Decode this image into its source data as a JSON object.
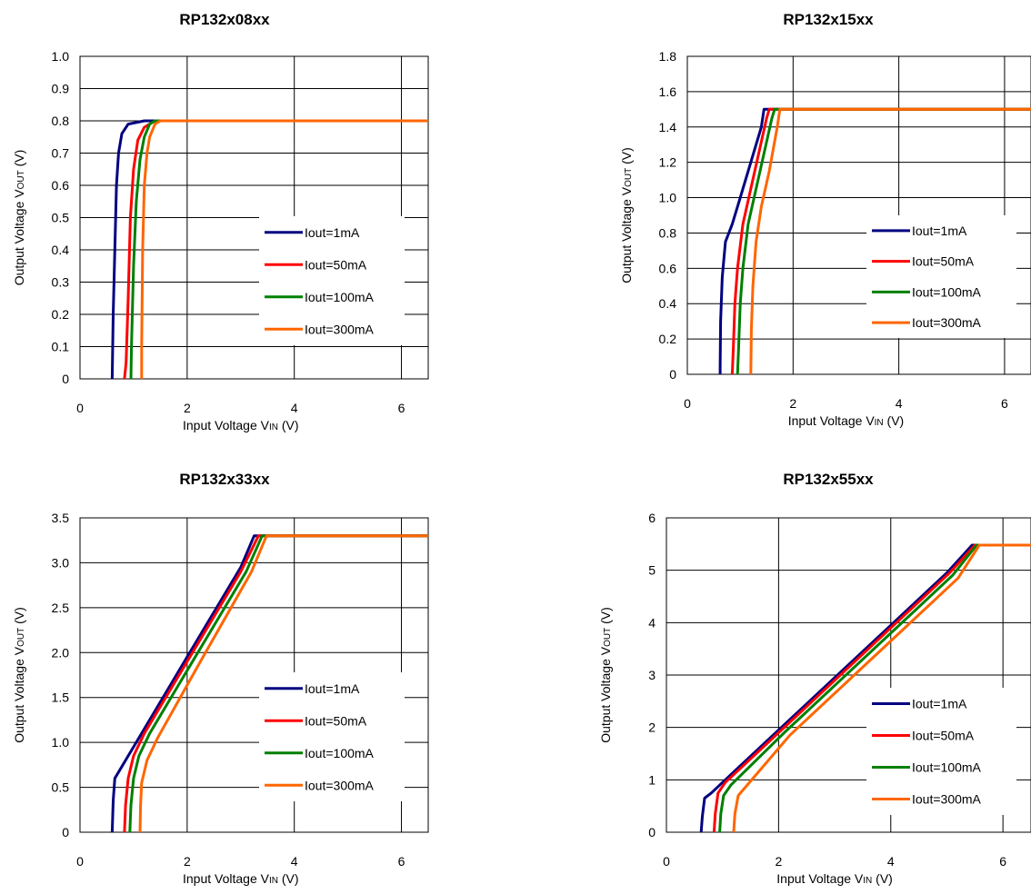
{
  "legend_labels": [
    "Iout=1mA",
    "Iout=50mA",
    "Iout=100mA",
    "Iout=300mA"
  ],
  "series_colors": [
    "#000080",
    "#ff0000",
    "#008000",
    "#ff6600"
  ],
  "x_axis": {
    "label_prefix": "Input Voltage V",
    "label_sub": "IN",
    "label_suffix": " (V)",
    "ticks": [
      "0",
      "2",
      "4",
      "6"
    ],
    "range": [
      0,
      6.5
    ]
  },
  "y_axis_label": {
    "prefix": "Output Voltage V",
    "sub": "OUT",
    "suffix": " (V)"
  },
  "chart_data": [
    {
      "type": "line",
      "title": "RP132x08xx",
      "xlim": [
        0,
        6.5
      ],
      "ylim": [
        0,
        1.0
      ],
      "yticks": [
        "0",
        "0.1",
        "0.2",
        "0.3",
        "0.4",
        "0.5",
        "0.6",
        "0.7",
        "0.8",
        "0.9",
        "1.0"
      ],
      "grid": true,
      "legend_position": "right-middle",
      "series": [
        {
          "name": "Iout=1mA",
          "x": [
            0.6,
            0.62,
            0.65,
            0.68,
            0.72,
            0.78,
            0.9,
            1.2,
            6.5
          ],
          "y": [
            0,
            0.2,
            0.4,
            0.6,
            0.7,
            0.76,
            0.79,
            0.8,
            0.8
          ]
        },
        {
          "name": "Iout=50mA",
          "x": [
            0.83,
            0.86,
            0.9,
            0.94,
            1.0,
            1.08,
            1.2,
            1.4,
            6.5
          ],
          "y": [
            0,
            0.05,
            0.25,
            0.5,
            0.65,
            0.74,
            0.78,
            0.8,
            0.8
          ]
        },
        {
          "name": "Iout=100mA",
          "x": [
            0.95,
            0.96,
            1.0,
            1.05,
            1.12,
            1.2,
            1.3,
            1.4,
            6.5
          ],
          "y": [
            0,
            0.1,
            0.35,
            0.55,
            0.68,
            0.75,
            0.79,
            0.8,
            0.8
          ]
        },
        {
          "name": "Iout=300mA",
          "x": [
            1.15,
            1.15,
            1.17,
            1.2,
            1.25,
            1.3,
            1.4,
            1.5,
            6.5
          ],
          "y": [
            0,
            0.1,
            0.4,
            0.6,
            0.7,
            0.75,
            0.79,
            0.8,
            0.8
          ]
        }
      ]
    },
    {
      "type": "line",
      "title": "RP132x15xx",
      "xlim": [
        0,
        6.5
      ],
      "ylim": [
        0,
        1.8
      ],
      "yticks": [
        "0",
        "0.2",
        "0.4",
        "0.6",
        "0.8",
        "1.0",
        "1.2",
        "1.4",
        "1.6",
        "1.8"
      ],
      "grid": true,
      "legend_position": "right-middle",
      "series": [
        {
          "name": "Iout=1mA",
          "x": [
            0.62,
            0.62,
            0.63,
            0.66,
            0.72,
            0.85,
            1.0,
            1.2,
            1.4,
            1.45,
            6.5
          ],
          "y": [
            0,
            0.05,
            0.3,
            0.55,
            0.75,
            0.85,
            1.0,
            1.2,
            1.4,
            1.5,
            1.5
          ]
        },
        {
          "name": "Iout=50mA",
          "x": [
            0.85,
            0.87,
            0.9,
            0.95,
            1.05,
            1.2,
            1.35,
            1.5,
            1.55,
            6.5
          ],
          "y": [
            0,
            0.15,
            0.4,
            0.6,
            0.85,
            1.05,
            1.25,
            1.45,
            1.5,
            1.5
          ]
        },
        {
          "name": "Iout=100mA",
          "x": [
            0.95,
            0.97,
            1.0,
            1.05,
            1.15,
            1.3,
            1.45,
            1.6,
            1.65,
            6.5
          ],
          "y": [
            0,
            0.15,
            0.4,
            0.6,
            0.85,
            1.05,
            1.25,
            1.45,
            1.5,
            1.5
          ]
        },
        {
          "name": "Iout=300mA",
          "x": [
            1.2,
            1.21,
            1.24,
            1.3,
            1.4,
            1.55,
            1.7,
            1.75,
            6.5
          ],
          "y": [
            0,
            0.25,
            0.5,
            0.75,
            0.95,
            1.15,
            1.4,
            1.5,
            1.5
          ]
        }
      ]
    },
    {
      "type": "line",
      "title": "RP132x33xx",
      "xlim": [
        0,
        6.5
      ],
      "ylim": [
        0,
        3.5
      ],
      "yticks": [
        "0",
        "0.5",
        "1.0",
        "1.5",
        "2.0",
        "2.5",
        "3.0",
        "3.5"
      ],
      "grid": true,
      "legend_position": "right-middle",
      "series": [
        {
          "name": "Iout=1mA",
          "x": [
            0.6,
            0.62,
            0.65,
            0.75,
            0.9,
            1.2,
            2.0,
            3.0,
            3.25,
            6.5
          ],
          "y": [
            0,
            0.35,
            0.6,
            0.7,
            0.85,
            1.15,
            1.95,
            2.95,
            3.3,
            3.3
          ]
        },
        {
          "name": "Iout=50mA",
          "x": [
            0.83,
            0.85,
            0.9,
            1.0,
            1.2,
            2.0,
            3.0,
            3.33,
            6.5
          ],
          "y": [
            0,
            0.3,
            0.6,
            0.85,
            1.1,
            1.9,
            2.9,
            3.3,
            3.3
          ]
        },
        {
          "name": "Iout=100mA",
          "x": [
            0.93,
            0.95,
            1.0,
            1.1,
            1.3,
            2.1,
            3.1,
            3.4,
            6.5
          ],
          "y": [
            0,
            0.3,
            0.6,
            0.85,
            1.1,
            1.9,
            2.9,
            3.3,
            3.3
          ]
        },
        {
          "name": "Iout=300mA",
          "x": [
            1.12,
            1.13,
            1.15,
            1.25,
            1.45,
            2.2,
            3.2,
            3.48,
            6.5
          ],
          "y": [
            0,
            0.3,
            0.55,
            0.8,
            1.05,
            1.85,
            2.9,
            3.3,
            3.3
          ]
        }
      ]
    },
    {
      "type": "line",
      "title": "RP132x55xx",
      "xlim": [
        0,
        6.5
      ],
      "ylim": [
        0,
        6
      ],
      "yticks": [
        "0",
        "1",
        "2",
        "3",
        "4",
        "5",
        "6"
      ],
      "grid": true,
      "legend_position": "right-middle",
      "series": [
        {
          "name": "Iout=1mA",
          "x": [
            0.62,
            0.64,
            0.68,
            0.8,
            1.0,
            2.0,
            3.0,
            4.0,
            5.0,
            5.45,
            6.5
          ],
          "y": [
            0,
            0.3,
            0.65,
            0.75,
            0.95,
            1.95,
            2.95,
            3.95,
            4.95,
            5.48,
            5.48
          ]
        },
        {
          "name": "Iout=50mA",
          "x": [
            0.85,
            0.87,
            0.92,
            1.05,
            2.05,
            3.05,
            4.05,
            5.05,
            5.5,
            6.5
          ],
          "y": [
            0,
            0.35,
            0.75,
            0.95,
            1.95,
            2.95,
            3.95,
            4.95,
            5.48,
            5.48
          ]
        },
        {
          "name": "Iout=100mA",
          "x": [
            0.95,
            0.97,
            1.02,
            1.15,
            2.1,
            3.1,
            4.1,
            5.1,
            5.53,
            6.5
          ],
          "y": [
            0,
            0.35,
            0.7,
            0.9,
            1.9,
            2.9,
            3.9,
            4.9,
            5.48,
            5.48
          ]
        },
        {
          "name": "Iout=300mA",
          "x": [
            1.2,
            1.22,
            1.28,
            1.4,
            2.2,
            3.2,
            4.2,
            5.2,
            5.58,
            6.5
          ],
          "y": [
            0,
            0.35,
            0.7,
            0.85,
            1.85,
            2.85,
            3.85,
            4.85,
            5.48,
            5.48
          ]
        }
      ]
    }
  ]
}
